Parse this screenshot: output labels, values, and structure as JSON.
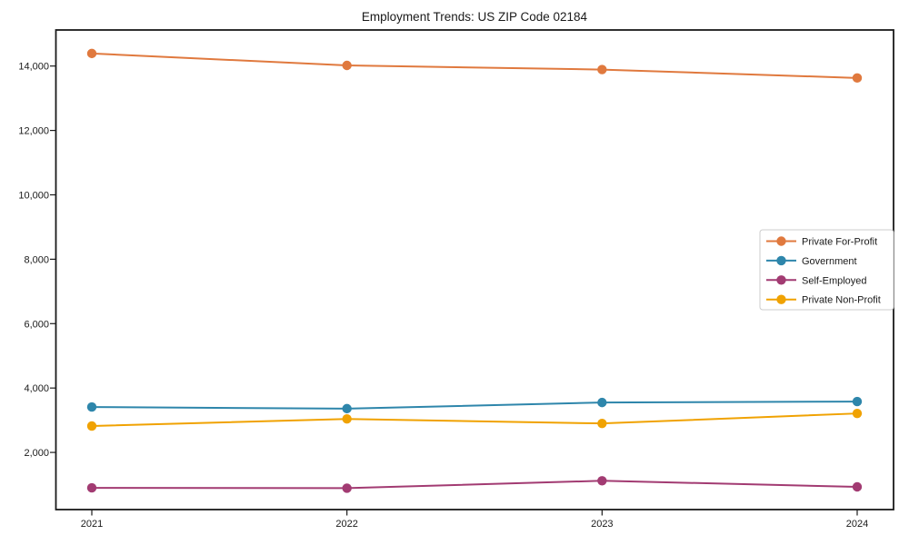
{
  "chart_data": {
    "type": "line",
    "title": "Employment Trends: US ZIP Code 02184",
    "xlabel": "",
    "ylabel": "",
    "categories": [
      "2021",
      "2022",
      "2023",
      "2024"
    ],
    "series": [
      {
        "name": "Private For-Profit",
        "color": "#E0793E",
        "values": [
          14390,
          14020,
          13890,
          13630
        ]
      },
      {
        "name": "Government",
        "color": "#2E86AB",
        "values": [
          3410,
          3360,
          3550,
          3580
        ]
      },
      {
        "name": "Self-Employed",
        "color": "#A23B72",
        "values": [
          900,
          890,
          1120,
          930
        ]
      },
      {
        "name": "Private Non-Profit",
        "color": "#F0A202",
        "values": [
          2820,
          3040,
          2900,
          3210
        ]
      }
    ],
    "yticks": {
      "values": [
        2000,
        4000,
        6000,
        8000,
        10000,
        12000,
        14000
      ],
      "labels": [
        "2,000",
        "4,000",
        "6,000",
        "8,000",
        "10,000",
        "12,000",
        "14,000"
      ]
    },
    "ylim": [
      225,
      15120
    ],
    "grid": false,
    "legend_position": "center right",
    "marker": "circle",
    "axis_color": "#1a1a1a",
    "text_color": "#1a1a1a",
    "background_color": "#ffffff"
  }
}
